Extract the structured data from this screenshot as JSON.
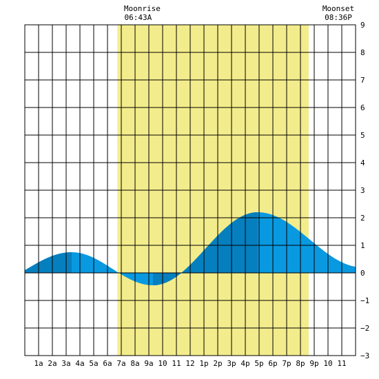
{
  "moonrise": {
    "label": "Moonrise",
    "time": "06:43A",
    "hour": 6.72
  },
  "moonset": {
    "label": "Moonset",
    "time": "08:36P",
    "hour": 20.6
  },
  "colors": {
    "moon_band": "#f3ec8c",
    "tide_light": "#0999e0",
    "tide_dark": "#067fbf"
  },
  "chart_data": {
    "type": "area",
    "xlim": [
      0,
      24
    ],
    "ylim": [
      -3,
      9
    ],
    "y_ticks": [
      -3,
      -2,
      -1,
      0,
      1,
      2,
      3,
      4,
      5,
      6,
      7,
      8,
      9
    ],
    "x_ticks": [
      {
        "h": 1,
        "label": "1a"
      },
      {
        "h": 2,
        "label": "2a"
      },
      {
        "h": 3,
        "label": "3a"
      },
      {
        "h": 4,
        "label": "4a"
      },
      {
        "h": 5,
        "label": "5a"
      },
      {
        "h": 6,
        "label": "6a"
      },
      {
        "h": 7,
        "label": "7a"
      },
      {
        "h": 8,
        "label": "8a"
      },
      {
        "h": 9,
        "label": "9a"
      },
      {
        "h": 10,
        "label": "10"
      },
      {
        "h": 11,
        "label": "11"
      },
      {
        "h": 12,
        "label": "12"
      },
      {
        "h": 13,
        "label": "1p"
      },
      {
        "h": 14,
        "label": "2p"
      },
      {
        "h": 15,
        "label": "3p"
      },
      {
        "h": 16,
        "label": "4p"
      },
      {
        "h": 17,
        "label": "5p"
      },
      {
        "h": 18,
        "label": "6p"
      },
      {
        "h": 19,
        "label": "7p"
      },
      {
        "h": 20,
        "label": "8p"
      },
      {
        "h": 21,
        "label": "9p"
      },
      {
        "h": 22,
        "label": "10"
      },
      {
        "h": 23,
        "label": "11"
      }
    ],
    "grid": true,
    "extremes": [
      {
        "h": -3.2,
        "v": -0.5
      },
      {
        "h": 3.4,
        "v": 0.75
      },
      {
        "h": 9.3,
        "v": -0.45
      },
      {
        "h": 16.9,
        "v": 2.2
      },
      {
        "h": 24.5,
        "v": 0.2
      }
    ],
    "dark_segments": [
      [
        0,
        3.4
      ],
      [
        9.3,
        16.9
      ]
    ]
  }
}
